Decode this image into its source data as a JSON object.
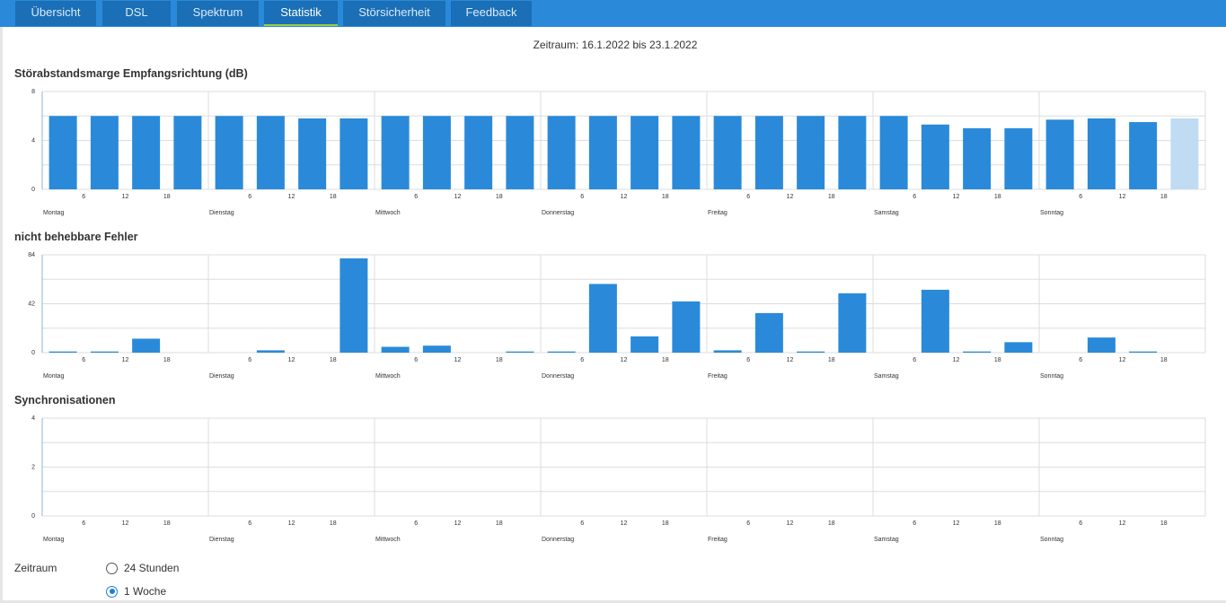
{
  "tabs": [
    {
      "label": "Übersicht",
      "active": false
    },
    {
      "label": "DSL",
      "active": false
    },
    {
      "label": "Spektrum",
      "active": false
    },
    {
      "label": "Statistik",
      "active": true
    },
    {
      "label": "Störsicherheit",
      "active": false
    },
    {
      "label": "Feedback",
      "active": false
    }
  ],
  "period_title": "Zeitraum: 16.1.2022 bis 23.1.2022",
  "colors": {
    "bar": "#2a8ad9",
    "bar_current": "#bfdcf2",
    "grid": "#dddddd",
    "axis": "#8fb6dc"
  },
  "chart_data": [
    {
      "type": "bar",
      "title": "Störabstandsmarge Empfangsrichtung (dB)",
      "ylim": [
        0,
        8
      ],
      "yticks": [
        "8",
        "4",
        "0"
      ],
      "days": [
        "Montag",
        "Dienstag",
        "Mittwoch",
        "Donnerstag",
        "Freitag",
        "Samstag",
        "Sonntag"
      ],
      "hour_ticks": [
        "6",
        "12",
        "18"
      ],
      "values": [
        6,
        6,
        6,
        6,
        6,
        6,
        5.8,
        5.8,
        6,
        6,
        6,
        6,
        6,
        6,
        6,
        6,
        6,
        6,
        6,
        6,
        6,
        5.3,
        5,
        5,
        5.7,
        5.8,
        5.5,
        5.8
      ],
      "highlight_last": true
    },
    {
      "type": "bar",
      "title": "nicht behebbare Fehler",
      "ylim": [
        0,
        84
      ],
      "yticks": [
        "84",
        "42",
        "0"
      ],
      "days": [
        "Montag",
        "Dienstag",
        "Mittwoch",
        "Donnerstag",
        "Freitag",
        "Samstag",
        "Sonntag"
      ],
      "hour_ticks": [
        "6",
        "12",
        "18"
      ],
      "values": [
        1,
        1,
        12,
        0,
        0,
        2,
        0,
        81,
        5,
        6,
        0,
        1,
        1,
        59,
        14,
        44,
        2,
        34,
        1,
        51,
        0,
        54,
        1,
        9,
        0,
        13,
        1,
        0
      ],
      "highlight_last": false
    },
    {
      "type": "bar",
      "title": "Synchronisationen",
      "ylim": [
        0,
        4
      ],
      "yticks": [
        "4",
        "2",
        "0"
      ],
      "days": [
        "Montag",
        "Dienstag",
        "Mittwoch",
        "Donnerstag",
        "Freitag",
        "Samstag",
        "Sonntag"
      ],
      "hour_ticks": [
        "6",
        "12",
        "18"
      ],
      "values": [
        0,
        0,
        0,
        0,
        0,
        0,
        0,
        0,
        0,
        0,
        0,
        0,
        0,
        0,
        0,
        0,
        0,
        0,
        0,
        0,
        0,
        0,
        0,
        0,
        0,
        0,
        0,
        0
      ],
      "highlight_last": false
    }
  ],
  "zeitraum": {
    "label": "Zeitraum",
    "options": [
      {
        "label": "24 Stunden",
        "checked": false
      },
      {
        "label": "1 Woche",
        "checked": true
      }
    ]
  }
}
